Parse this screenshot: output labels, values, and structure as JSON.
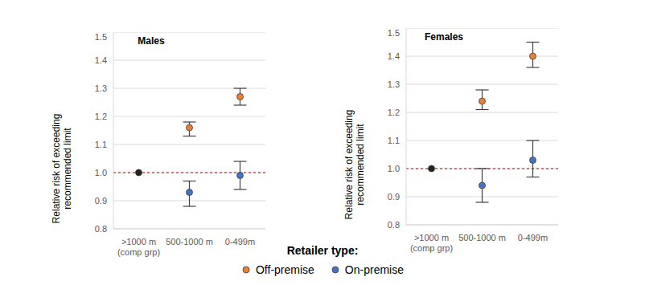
{
  "legend_title": "Retailer type:",
  "chart_data": [
    {
      "type": "scatter",
      "title": "Males",
      "ylabel": "Relative risk of exceeding\nrecommended limit",
      "categories": [
        ">1000 m\n(comp grp)",
        "500-1000 m",
        "0-499m"
      ],
      "ylim": [
        0.8,
        1.5
      ],
      "yticks": [
        0.8,
        0.9,
        {
          "value": 1,
          "label": "1.0"
        },
        1.1,
        1.2,
        1.3,
        1.4,
        1.5
      ],
      "grid": true,
      "legend": "bottom",
      "reference": {
        "category": ">1000 m\n(comp grp)",
        "value": 1,
        "color": "#222222"
      },
      "series": [
        {
          "name": "Off-premise",
          "color": "#ed7d31",
          "marker": "circle",
          "values": [
            null,
            1.16,
            1.27
          ],
          "errors": [
            null,
            [
              1.13,
              1.18
            ],
            [
              1.24,
              1.3
            ]
          ]
        },
        {
          "name": "On-premise",
          "color": "#4472c4",
          "marker": "circle",
          "values": [
            null,
            0.93,
            0.99
          ],
          "errors": [
            null,
            [
              0.88,
              0.97
            ],
            [
              0.94,
              1.04
            ]
          ]
        }
      ]
    },
    {
      "type": "scatter",
      "title": "Females",
      "ylabel": "Relative risk of exceeding\nrecommended limit",
      "categories": [
        ">1000 m\n(comp grp)",
        "500-1000 m",
        "0-499m"
      ],
      "ylim": [
        0.8,
        1.5
      ],
      "yticks": [
        0.8,
        0.9,
        {
          "value": 1,
          "label": "1.0"
        },
        1.1,
        1.2,
        1.3,
        1.4,
        1.5
      ],
      "grid": true,
      "legend": "bottom",
      "reference": {
        "category": ">1000 m\n(comp grp)",
        "value": 1,
        "color": "#222222"
      },
      "series": [
        {
          "name": "Off-premise",
          "color": "#ed7d31",
          "marker": "circle",
          "values": [
            null,
            1.24,
            1.4
          ],
          "errors": [
            null,
            [
              1.21,
              1.28
            ],
            [
              1.36,
              1.45
            ]
          ]
        },
        {
          "name": "On-premise",
          "color": "#4472c4",
          "marker": "circle",
          "values": [
            null,
            0.94,
            1.03
          ],
          "errors": [
            null,
            [
              0.88,
              1.0
            ],
            [
              0.97,
              1.1
            ]
          ]
        }
      ]
    }
  ]
}
